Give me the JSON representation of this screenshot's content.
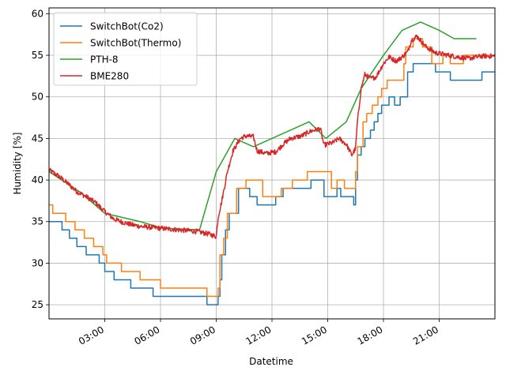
{
  "chart_data": {
    "type": "line",
    "title": "",
    "xlabel": "Datetime",
    "ylabel": "Humidity [%]",
    "xlim": [
      0,
      24
    ],
    "ylim": [
      23.3,
      60.7
    ],
    "x_unit": "hours",
    "grid": true,
    "legend_position": "upper-left",
    "x_ticks": [
      {
        "x": 3,
        "label": "03:00"
      },
      {
        "x": 6,
        "label": "06:00"
      },
      {
        "x": 9,
        "label": "09:00"
      },
      {
        "x": 12,
        "label": "12:00"
      },
      {
        "x": 15,
        "label": "15:00"
      },
      {
        "x": 18,
        "label": "18:00"
      },
      {
        "x": 21,
        "label": "21:00"
      }
    ],
    "y_ticks": [
      {
        "y": 25,
        "label": "25"
      },
      {
        "y": 30,
        "label": "30"
      },
      {
        "y": 35,
        "label": "35"
      },
      {
        "y": 40,
        "label": "40"
      },
      {
        "y": 45,
        "label": "45"
      },
      {
        "y": 50,
        "label": "50"
      },
      {
        "y": 55,
        "label": "55"
      },
      {
        "y": 60,
        "label": "60"
      }
    ],
    "series": [
      {
        "name": "SwitchBot(Co2)",
        "color": "#1f77b4",
        "step": true,
        "points": [
          [
            0,
            35
          ],
          [
            0.7,
            34
          ],
          [
            1.1,
            33
          ],
          [
            1.5,
            32
          ],
          [
            2.0,
            31
          ],
          [
            2.7,
            30
          ],
          [
            3.0,
            29
          ],
          [
            3.5,
            28
          ],
          [
            4.4,
            27
          ],
          [
            5.6,
            26
          ],
          [
            8.5,
            25
          ],
          [
            9.1,
            26
          ],
          [
            9.2,
            28
          ],
          [
            9.3,
            31
          ],
          [
            9.5,
            34
          ],
          [
            9.7,
            36
          ],
          [
            10.2,
            39
          ],
          [
            10.8,
            38
          ],
          [
            11.2,
            37
          ],
          [
            12.2,
            38
          ],
          [
            12.6,
            39
          ],
          [
            13.3,
            39
          ],
          [
            14.1,
            40
          ],
          [
            14.8,
            38
          ],
          [
            15.5,
            39
          ],
          [
            15.7,
            38
          ],
          [
            16.4,
            37
          ],
          [
            16.5,
            40
          ],
          [
            16.6,
            43
          ],
          [
            16.8,
            44
          ],
          [
            17.0,
            45
          ],
          [
            17.3,
            46
          ],
          [
            17.5,
            47
          ],
          [
            17.7,
            48
          ],
          [
            17.9,
            49
          ],
          [
            18.3,
            50
          ],
          [
            18.6,
            49
          ],
          [
            18.9,
            50
          ],
          [
            19.3,
            53
          ],
          [
            19.6,
            54
          ],
          [
            20.8,
            53
          ],
          [
            21.6,
            52
          ],
          [
            23.3,
            53
          ],
          [
            24,
            53
          ]
        ]
      },
      {
        "name": "SwitchBot(Thermo)",
        "color": "#ff7f0e",
        "step": true,
        "points": [
          [
            0,
            37
          ],
          [
            0.2,
            36
          ],
          [
            0.9,
            35
          ],
          [
            1.4,
            34
          ],
          [
            1.9,
            33
          ],
          [
            2.4,
            32
          ],
          [
            2.9,
            31
          ],
          [
            3.1,
            30
          ],
          [
            3.9,
            29
          ],
          [
            4.9,
            28
          ],
          [
            6.0,
            27
          ],
          [
            8.5,
            26
          ],
          [
            9.1,
            27
          ],
          [
            9.2,
            31
          ],
          [
            9.4,
            33
          ],
          [
            9.6,
            36
          ],
          [
            10.1,
            39
          ],
          [
            10.6,
            40
          ],
          [
            11.5,
            38
          ],
          [
            12.5,
            39
          ],
          [
            13.1,
            40
          ],
          [
            13.9,
            41
          ],
          [
            15.2,
            39
          ],
          [
            15.5,
            40
          ],
          [
            15.9,
            39
          ],
          [
            16.5,
            41
          ],
          [
            16.6,
            44
          ],
          [
            16.9,
            47
          ],
          [
            17.1,
            48
          ],
          [
            17.4,
            49
          ],
          [
            17.7,
            50
          ],
          [
            17.9,
            51
          ],
          [
            18.2,
            52
          ],
          [
            19.1,
            54
          ],
          [
            19.2,
            56
          ],
          [
            19.6,
            57
          ],
          [
            20.1,
            56
          ],
          [
            20.6,
            54
          ],
          [
            21.2,
            55
          ],
          [
            21.6,
            54
          ],
          [
            22.3,
            55
          ],
          [
            24,
            55
          ]
        ]
      },
      {
        "name": "PTH-8",
        "color": "#2ca02c",
        "step": false,
        "points": [
          [
            0,
            41
          ],
          [
            1.7,
            38.5
          ],
          [
            3,
            36
          ],
          [
            4.9,
            35
          ],
          [
            6.1,
            34.2
          ],
          [
            8.1,
            34
          ],
          [
            9,
            41
          ],
          [
            10.0,
            45
          ],
          [
            11.0,
            44
          ],
          [
            14.0,
            47
          ],
          [
            14.9,
            45
          ],
          [
            16.0,
            47
          ],
          [
            16.8,
            51
          ],
          [
            18.0,
            55
          ],
          [
            19.0,
            58
          ],
          [
            20.0,
            59
          ],
          [
            21.0,
            58
          ],
          [
            21.8,
            57
          ],
          [
            23.0,
            57
          ]
        ]
      },
      {
        "name": "BME280",
        "color": "#d62728",
        "step": false,
        "noise": 0.6,
        "points": [
          [
            0,
            41.2
          ],
          [
            0.5,
            40.5
          ],
          [
            1.0,
            39.6
          ],
          [
            1.5,
            38.6
          ],
          [
            2.0,
            38.0
          ],
          [
            2.5,
            37.3
          ],
          [
            3.0,
            36.2
          ],
          [
            3.5,
            35.3
          ],
          [
            4.0,
            34.9
          ],
          [
            4.5,
            34.6
          ],
          [
            5.0,
            34.4
          ],
          [
            6.0,
            34.2
          ],
          [
            7.0,
            34.0
          ],
          [
            8.0,
            33.8
          ],
          [
            8.6,
            33.5
          ],
          [
            9.0,
            33.2
          ],
          [
            9.1,
            35.5
          ],
          [
            9.3,
            37.5
          ],
          [
            9.6,
            41.0
          ],
          [
            9.9,
            43.5
          ],
          [
            10.3,
            45.0
          ],
          [
            10.6,
            45.3
          ],
          [
            11.0,
            45.2
          ],
          [
            11.2,
            43.5
          ],
          [
            11.7,
            43.2
          ],
          [
            12.2,
            43.4
          ],
          [
            12.6,
            44.3
          ],
          [
            13.0,
            45.0
          ],
          [
            13.6,
            45.3
          ],
          [
            14.0,
            45.8
          ],
          [
            14.6,
            46.2
          ],
          [
            14.8,
            44.2
          ],
          [
            15.3,
            44.5
          ],
          [
            15.6,
            45.0
          ],
          [
            16.0,
            44.3
          ],
          [
            16.3,
            43.0
          ],
          [
            16.5,
            43.8
          ],
          [
            16.6,
            47.0
          ],
          [
            16.8,
            51.0
          ],
          [
            17.0,
            52.7
          ],
          [
            17.3,
            52.2
          ],
          [
            17.6,
            52.4
          ],
          [
            18.0,
            54.0
          ],
          [
            18.3,
            54.8
          ],
          [
            18.7,
            54.3
          ],
          [
            19.0,
            54.8
          ],
          [
            19.3,
            55.4
          ],
          [
            19.5,
            56.8
          ],
          [
            19.8,
            57.3
          ],
          [
            20.3,
            56.0
          ],
          [
            20.8,
            55.3
          ],
          [
            21.5,
            55.0
          ],
          [
            22.5,
            54.6
          ],
          [
            23.3,
            54.9
          ],
          [
            24,
            54.9
          ]
        ]
      }
    ]
  }
}
